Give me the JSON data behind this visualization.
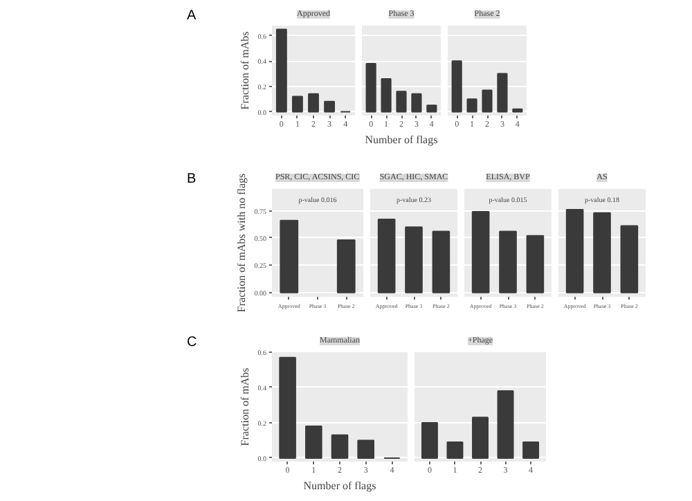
{
  "chart_data": [
    {
      "type": "bar",
      "title": "Approved",
      "annotations": [
        "A"
      ],
      "ylabel": "Fraction of mAbs",
      "categories": [
        "0",
        "1",
        "2",
        "3",
        "4"
      ],
      "values": [
        0.65,
        0.12,
        0.14,
        0.08,
        0
      ],
      "color": "#3a3a3a",
      "ylim": [
        -0.03,
        0.68
      ],
      "yticks": [
        {
          "value": 0,
          "label": "0.0"
        },
        {
          "value": 0.2,
          "label": "0.2"
        },
        {
          "value": 0.4,
          "label": "0.4"
        },
        {
          "value": 0.6,
          "label": "0.6"
        }
      ],
      "grid": "y"
    },
    {
      "type": "bar",
      "title": "Phase 3",
      "xlabel": "Number of flags",
      "categories": [
        "0",
        "1",
        "2",
        "3",
        "4"
      ],
      "values": [
        0.38,
        0.26,
        0.16,
        0.14,
        0.05
      ],
      "color": "#3a3a3a",
      "ylim": [
        -0.03,
        0.68
      ],
      "yticks": [
        {
          "value": 0,
          "label": "0.0"
        },
        {
          "value": 0.2,
          "label": "0.2"
        },
        {
          "value": 0.4,
          "label": "0.4"
        },
        {
          "value": 0.6,
          "label": "0.6"
        }
      ],
      "grid": "y",
      "tick_labels": "x"
    },
    {
      "type": "bar",
      "title": "Phase 2",
      "categories": [
        "0",
        "1",
        "2",
        "3",
        "4"
      ],
      "values": [
        0.4,
        0.1,
        0.17,
        0.3,
        0.02
      ],
      "color": "#3a3a3a",
      "ylim": [
        -0.03,
        0.68
      ],
      "yticks": [
        {
          "value": 0,
          "label": "0.0"
        },
        {
          "value": 0.2,
          "label": "0.2"
        },
        {
          "value": 0.4,
          "label": "0.4"
        },
        {
          "value": 0.6,
          "label": "0.6"
        }
      ],
      "grid": "y",
      "tick_labels": "x"
    },
    {
      "type": "bar",
      "title": "PSR, CIC, ACSINS, CIC",
      "annotations": [
        "B",
        "p-value 0.016"
      ],
      "ylabel": "Fraction of mAbs with no flags",
      "categories": [
        "Approved",
        "Phase 3",
        "Phase 2"
      ],
      "values": [
        0.66,
        null,
        0.48
      ],
      "color": "#3a3a3a",
      "ylim": [
        -0.04,
        0.95
      ],
      "yticks": [
        {
          "value": 0,
          "label": "0.00"
        },
        {
          "value": 0.25,
          "label": "0.25"
        },
        {
          "value": 0.5,
          "label": "0.50"
        },
        {
          "value": 0.75,
          "label": "0.75"
        }
      ],
      "grid": "y"
    },
    {
      "type": "bar",
      "title": "SGAC, HIC, SMAC",
      "annotations": [
        "p-value 0.23"
      ],
      "categories": [
        "Approved",
        "Phase 3",
        "Phase 2"
      ],
      "values": [
        0.67,
        0.6,
        0.56
      ],
      "color": "#3a3a3a",
      "ylim": [
        -0.04,
        0.95
      ],
      "yticks": [
        {
          "value": 0,
          "label": "0.00"
        },
        {
          "value": 0.25,
          "label": "0.25"
        },
        {
          "value": 0.5,
          "label": "0.50"
        },
        {
          "value": 0.75,
          "label": "0.75"
        }
      ],
      "grid": "y",
      "tick_labels": "x"
    },
    {
      "type": "bar",
      "title": "ELISA, BVP",
      "annotations": [
        "p-value 0.015"
      ],
      "categories": [
        "Approved",
        "Phase 3",
        "Phase 2"
      ],
      "values": [
        0.74,
        0.56,
        0.52
      ],
      "color": "#3a3a3a",
      "ylim": [
        -0.04,
        0.95
      ],
      "yticks": [
        {
          "value": 0,
          "label": "0.00"
        },
        {
          "value": 0.25,
          "label": "0.25"
        },
        {
          "value": 0.5,
          "label": "0.50"
        },
        {
          "value": 0.75,
          "label": "0.75"
        }
      ],
      "grid": "y",
      "tick_labels": "x"
    },
    {
      "type": "bar",
      "title": "AS",
      "annotations": [
        "p-value 0.18"
      ],
      "categories": [
        "Approved",
        "Phase 3",
        "Phase 2"
      ],
      "values": [
        0.76,
        0.73,
        0.61
      ],
      "color": "#3a3a3a",
      "ylim": [
        -0.04,
        0.95
      ],
      "yticks": [
        {
          "value": 0,
          "label": "0.00"
        },
        {
          "value": 0.25,
          "label": "0.25"
        },
        {
          "value": 0.5,
          "label": "0.50"
        },
        {
          "value": 0.75,
          "label": "0.75"
        }
      ],
      "grid": "y",
      "tick_labels": "x"
    },
    {
      "type": "bar",
      "title": "Mammalian",
      "annotations": [
        "C"
      ],
      "ylabel": "Fraction of mAbs",
      "xlabel": "Number of flags",
      "categories": [
        "0",
        "1",
        "2",
        "3",
        "4"
      ],
      "values": [
        0.57,
        0.18,
        0.13,
        0.1,
        0
      ],
      "color": "#3a3a3a",
      "ylim": [
        -0.02,
        0.6
      ],
      "yticks": [
        {
          "value": 0,
          "label": "0.0"
        },
        {
          "value": 0.2,
          "label": "0.2"
        },
        {
          "value": 0.4,
          "label": "0.4"
        },
        {
          "value": 0.6,
          "label": "0.6"
        }
      ],
      "grid": "y"
    },
    {
      "type": "bar",
      "title": "+Phage",
      "categories": [
        "0",
        "1",
        "2",
        "3",
        "4"
      ],
      "values": [
        0.2,
        0.09,
        0.23,
        0.38,
        0.09
      ],
      "color": "#3a3a3a",
      "ylim": [
        -0.02,
        0.6
      ],
      "yticks": [
        {
          "value": 0,
          "label": "0.0"
        },
        {
          "value": 0.2,
          "label": "0.2"
        },
        {
          "value": 0.4,
          "label": "0.4"
        },
        {
          "value": 0.6,
          "label": "0.6"
        }
      ],
      "grid": "y",
      "tick_labels": "x"
    }
  ]
}
